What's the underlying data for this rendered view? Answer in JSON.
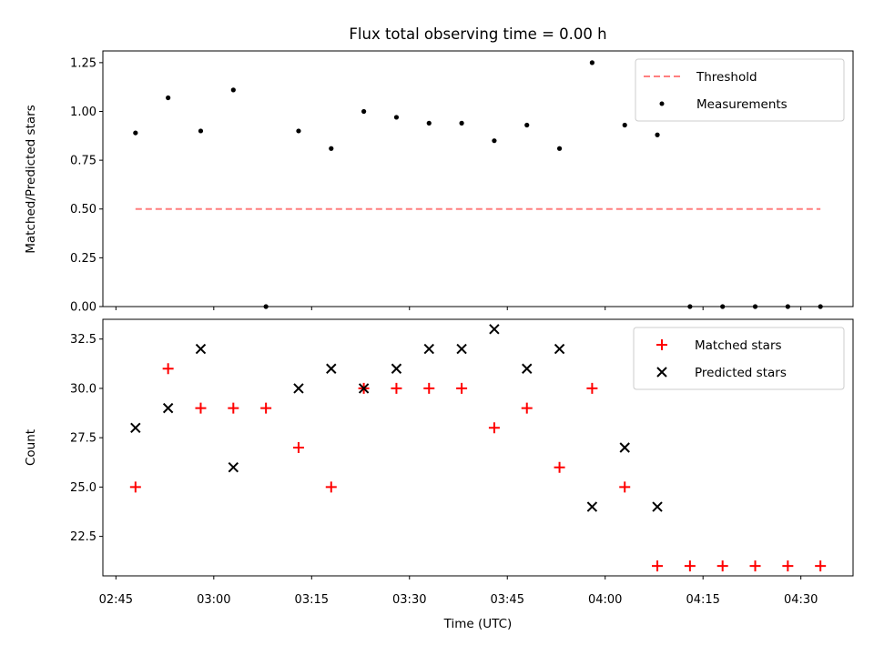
{
  "chart_data": {
    "title": "Flux total observing time = 0.00 h",
    "xlabel": "Time (UTC)",
    "x_ticks": [
      "02:45",
      "03:00",
      "03:15",
      "03:30",
      "03:45",
      "04:00",
      "04:15",
      "04:30"
    ],
    "x_range": [
      "02:43",
      "04:38"
    ],
    "panels": [
      {
        "type": "scatter",
        "ylabel": "Matched/Predicted stars",
        "ylim": [
          0.0,
          1.31
        ],
        "y_ticks": [
          "0.00",
          "0.25",
          "0.50",
          "0.75",
          "1.00",
          "1.25"
        ],
        "x_ticklabels_shown": false,
        "legend": "top-right",
        "series": [
          {
            "name": "Threshold",
            "kind": "dashed-line",
            "color": "#ff7f7f",
            "x": [
              "02:48",
              "04:33"
            ],
            "values": [
              0.5,
              0.5
            ]
          },
          {
            "name": "Measurements",
            "kind": "dots",
            "color": "#000000",
            "x": [
              "02:48",
              "02:53",
              "02:58",
              "03:03",
              "03:08",
              "03:13",
              "03:18",
              "03:23",
              "03:28",
              "03:33",
              "03:38",
              "03:43",
              "03:48",
              "03:53",
              "03:58",
              "04:03",
              "04:08",
              "04:13",
              "04:18",
              "04:23",
              "04:28",
              "04:33"
            ],
            "values": [
              0.89,
              1.07,
              0.9,
              1.11,
              0.0,
              0.9,
              0.81,
              1.0,
              0.97,
              0.94,
              0.94,
              0.85,
              0.93,
              0.81,
              1.25,
              0.93,
              0.88,
              0.0,
              0.0,
              0.0,
              0.0,
              0.0
            ]
          }
        ]
      },
      {
        "type": "scatter",
        "ylabel": "Count",
        "ylim": [
          20.5,
          33.5
        ],
        "y_ticks": [
          "22.5",
          "25.0",
          "27.5",
          "30.0",
          "32.5"
        ],
        "legend": "top-right",
        "series": [
          {
            "name": "Matched stars",
            "kind": "plus",
            "color": "#ff0000",
            "x": [
              "02:48",
              "02:53",
              "02:58",
              "03:03",
              "03:08",
              "03:13",
              "03:18",
              "03:23",
              "03:28",
              "03:33",
              "03:38",
              "03:43",
              "03:48",
              "03:53",
              "03:58",
              "04:03",
              "04:08",
              "04:13",
              "04:18",
              "04:23",
              "04:28",
              "04:33"
            ],
            "values": [
              25,
              31,
              29,
              29,
              29,
              27,
              25,
              30,
              30,
              30,
              30,
              28,
              29,
              26,
              30,
              25,
              21,
              21,
              21,
              21,
              21,
              21
            ]
          },
          {
            "name": "Predicted stars",
            "kind": "x",
            "color": "#000000",
            "x": [
              "02:48",
              "02:53",
              "02:58",
              "03:03",
              "03:13",
              "03:18",
              "03:23",
              "03:28",
              "03:33",
              "03:38",
              "03:43",
              "03:48",
              "03:53",
              "03:58",
              "04:03",
              "04:08"
            ],
            "values": [
              28,
              29,
              32,
              26,
              30,
              31,
              30,
              31,
              32,
              32,
              33,
              31,
              32,
              24,
              27,
              24
            ]
          }
        ]
      }
    ]
  }
}
